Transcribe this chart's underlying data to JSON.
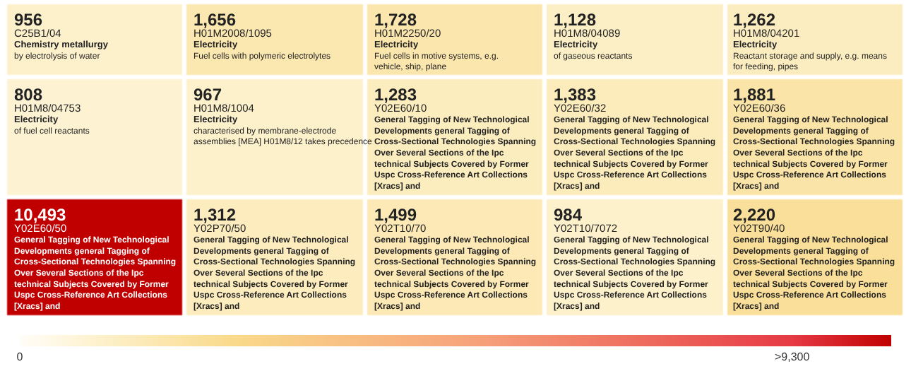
{
  "chart_data": {
    "type": "heatmap",
    "categories": [
      null,
      null,
      null,
      null,
      null
    ],
    "y_categories": [
      null,
      null,
      null
    ],
    "cells": [
      [
        956,
        1656,
        1728,
        1128,
        1262
      ],
      [
        808,
        967,
        1283,
        1383,
        1881
      ],
      [
        10493,
        1312,
        1499,
        984,
        2220
      ]
    ],
    "cell_labels": [
      [
        "956\nC25B1/04\nChemistry metallurgy\nby electrolysis of water",
        "1,656\nH01M2008/1095\nElectricity\nFuel cells with polymeric electrolytes",
        "1,728\nH01M2250/20\nElectricity\nFuel cells in motive systems, e.g. vehicle, ship, plane",
        "1,128\nH01M8/04089\nElectricity\nof gaseous reactants",
        "1,262\nH01M8/04201\nElectricity\nReactant storage and supply, e.g. means for feeding, pipes"
      ],
      [
        "808\nH01M8/04753\nElectricity\nof fuel cell reactants",
        "967\nH01M8/1004\nElectricity\ncharacterised by membrane-electrode assemblies [MEA] H01M8/12 takes precedence",
        "1,283\nY02E60/10\n\nGeneral Tagging of New Technological Developments general Tagging of Cross-Sectional Technologies Spanning Over Several Sections of the Ipc technical Subjects Covered by Former Uspc Cross-Reference Art Collections [Xracs] and",
        "1,383\nY02E60/32\n\nGeneral Tagging of New Technological Developments general Tagging of Cross-Sectional Technologies Spanning Over Several Sections of the Ipc technical Subjects Covered by Former Uspc Cross-Reference Art Collections [Xracs] and",
        "1,881\nY02E60/36\n\nGeneral Tagging of New Technological Developments general Tagging of Cross-Sectional Technologies Spanning Over Several Sections of the Ipc technical Subjects Covered by Former Uspc Cross-Reference Art Collections [Xracs] and"
      ],
      [
        "10,493\nY02E60/50\n\nGeneral Tagging of New Technological Developments general Tagging of Cross-Sectional Technologies Spanning Over Several Sections of the Ipc technical Subjects Covered by Former Uspc Cross-Reference Art Collections [Xracs] and",
        "1,312\nY02P70/50\n\nGeneral Tagging of New Technological Developments general Tagging of Cross-Sectional Technologies Spanning Over Several Sections of the Ipc technical Subjects Covered by Former Uspc Cross-Reference Art Collections [Xracs] and",
        "1,499\nY02T10/70\n\nGeneral Tagging of New Technological Developments general Tagging of Cross-Sectional Technologies Spanning Over Several Sections of the Ipc technical Subjects Covered by Former Uspc Cross-Reference Art Collections [Xracs] and",
        "984\nY02T10/7072\n\nGeneral Tagging of New Technological Developments general Tagging of Cross-Sectional Technologies Spanning Over Several Sections of the Ipc technical Subjects Covered by Former Uspc Cross-Reference Art Collections [Xracs] and",
        "2,220\nY02T90/40\n\nGeneral Tagging of New Technological Developments general Tagging of Cross-Sectional Technologies Spanning Over Several Sections of the Ipc technical Subjects Covered by Former Uspc Cross-Reference Art Collections [Xracs] and"
      ]
    ],
    "clim": [
      0,
      10493
    ],
    "cticks": [
      {
        "value": 9300,
        "label": ">9,300"
      },
      0
    ]
  }
}
